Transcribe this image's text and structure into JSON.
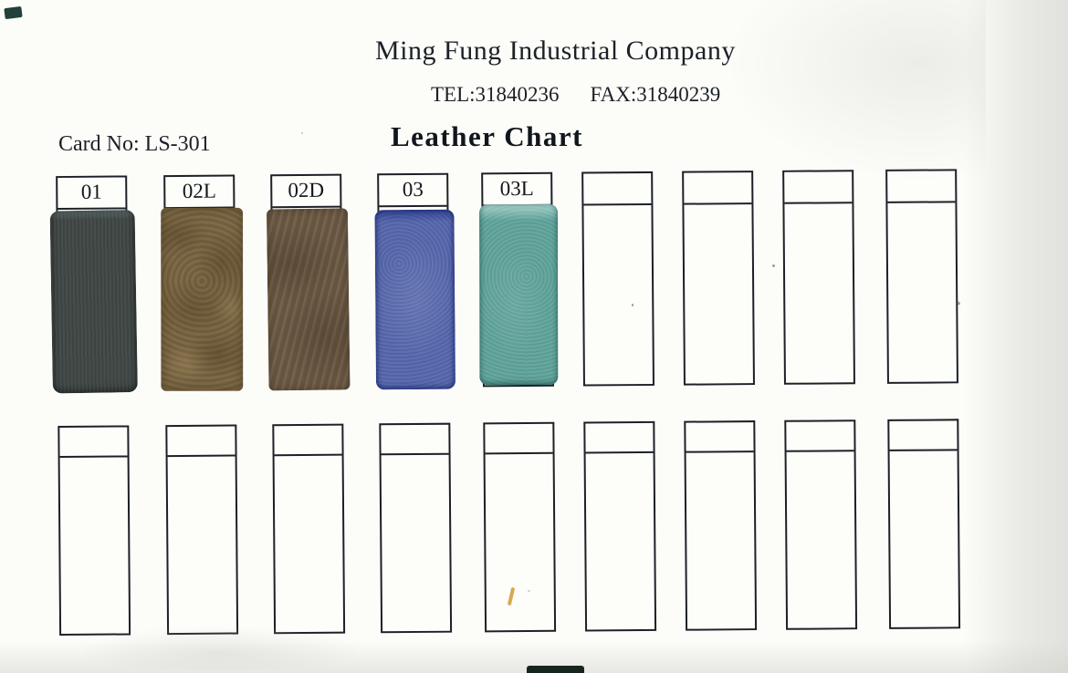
{
  "header": {
    "company": "Ming Fung Industrial Company",
    "tel": "TEL:31840236",
    "fax": "FAX:31840239",
    "title": "Leather Chart",
    "card_no": "Card No: LS-301"
  },
  "colors": {
    "ink": "#1c2127",
    "paper": "#fcfcf9",
    "swatch_01": "#3f4745",
    "swatch_02L": "#77633f",
    "swatch_02D": "#6c5a45",
    "swatch_03": "#5567ac",
    "swatch_03L": "#5fa39b",
    "stray_yellow_mark": "#d9a84f"
  },
  "swatch_rows": [
    {
      "cards": [
        {
          "label": "01",
          "has_swatch": true,
          "color": "#3f4745",
          "texture": "plain"
        },
        {
          "label": "02L",
          "has_swatch": true,
          "color": "#77633f",
          "texture": "marble"
        },
        {
          "label": "02D",
          "has_swatch": true,
          "color": "#6c5a45",
          "texture": "streak"
        },
        {
          "label": "03",
          "has_swatch": true,
          "color": "#5567ac",
          "texture": "grain-blue"
        },
        {
          "label": "03L",
          "has_swatch": true,
          "color": "#5fa39b",
          "texture": "grain-teal"
        },
        {
          "label": "",
          "has_swatch": false
        },
        {
          "label": "",
          "has_swatch": false
        },
        {
          "label": "",
          "has_swatch": false
        },
        {
          "label": "",
          "has_swatch": false
        }
      ]
    },
    {
      "cards": [
        {
          "label": "",
          "has_swatch": false
        },
        {
          "label": "",
          "has_swatch": false
        },
        {
          "label": "",
          "has_swatch": false
        },
        {
          "label": "",
          "has_swatch": false
        },
        {
          "label": "",
          "has_swatch": false
        },
        {
          "label": "",
          "has_swatch": false
        },
        {
          "label": "",
          "has_swatch": false
        },
        {
          "label": "",
          "has_swatch": false
        },
        {
          "label": "",
          "has_swatch": false
        }
      ]
    }
  ]
}
